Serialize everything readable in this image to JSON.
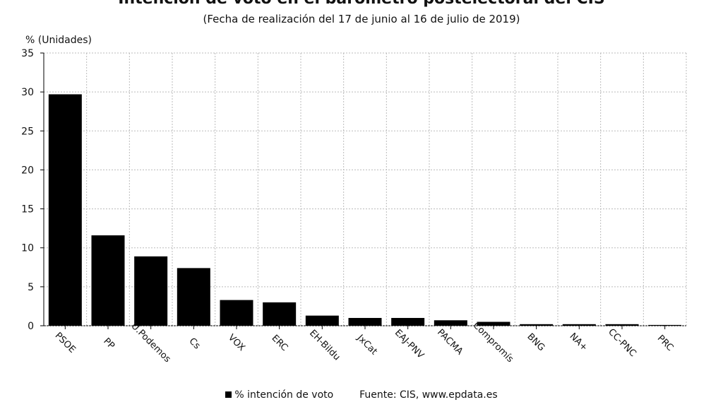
{
  "chart_data": {
    "type": "bar",
    "title": "Intención de voto en el barómetro postelectoral del CIS",
    "subtitle": "(Fecha de realización del 17 de junio al 16 de julio de 2019)",
    "ylabel": "% (Unidades)",
    "xlabel": "",
    "ylim": [
      0,
      35
    ],
    "yticks": [
      0,
      5,
      10,
      15,
      20,
      25,
      30,
      35
    ],
    "grid": true,
    "categories": [
      "PSOE",
      "PP",
      "U.Podemos",
      "Cs",
      "VOX",
      "ERC",
      "EH-Bildu",
      "JxCat",
      "EAJ-PNV",
      "PACMA",
      "Compromís",
      "BNG",
      "NA+",
      "CC-PNC",
      "PRC"
    ],
    "series": [
      {
        "name": "% intención de voto",
        "color": "#000000",
        "values": [
          29.7,
          11.6,
          8.9,
          7.4,
          3.3,
          3.0,
          1.3,
          1.0,
          1.0,
          0.7,
          0.5,
          0.2,
          0.2,
          0.2,
          0.1
        ]
      }
    ],
    "legend_position": "bottom",
    "source": "Fuente: CIS, www.epdata.es"
  }
}
